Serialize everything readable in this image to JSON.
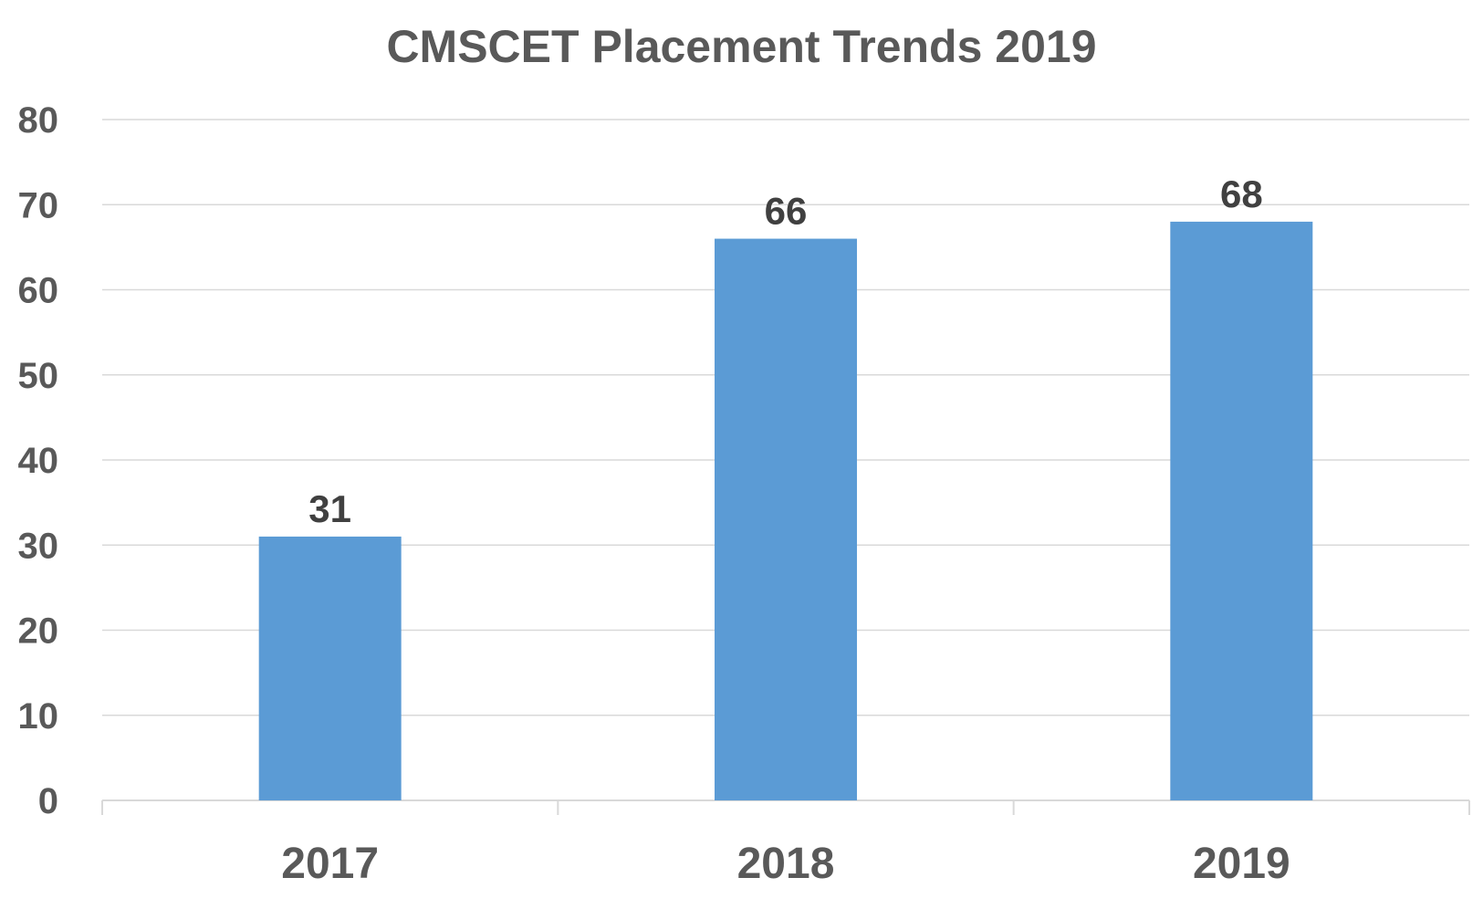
{
  "chart_data": {
    "type": "bar",
    "title": "CMSCET Placement Trends 2019",
    "categories": [
      "2017",
      "2018",
      "2019"
    ],
    "values": [
      31,
      66,
      68
    ],
    "data_labels": [
      "31",
      "66",
      "68"
    ],
    "yticks": [
      "0",
      "10",
      "20",
      "30",
      "40",
      "50",
      "60",
      "70",
      "80"
    ],
    "ylim": [
      0,
      80
    ],
    "xlabel": "",
    "ylabel": "",
    "grid": true,
    "legend": "none",
    "bar_color": "#5B9BD5",
    "gridline_color": "#D9D9D9",
    "text_color": "#595959"
  }
}
